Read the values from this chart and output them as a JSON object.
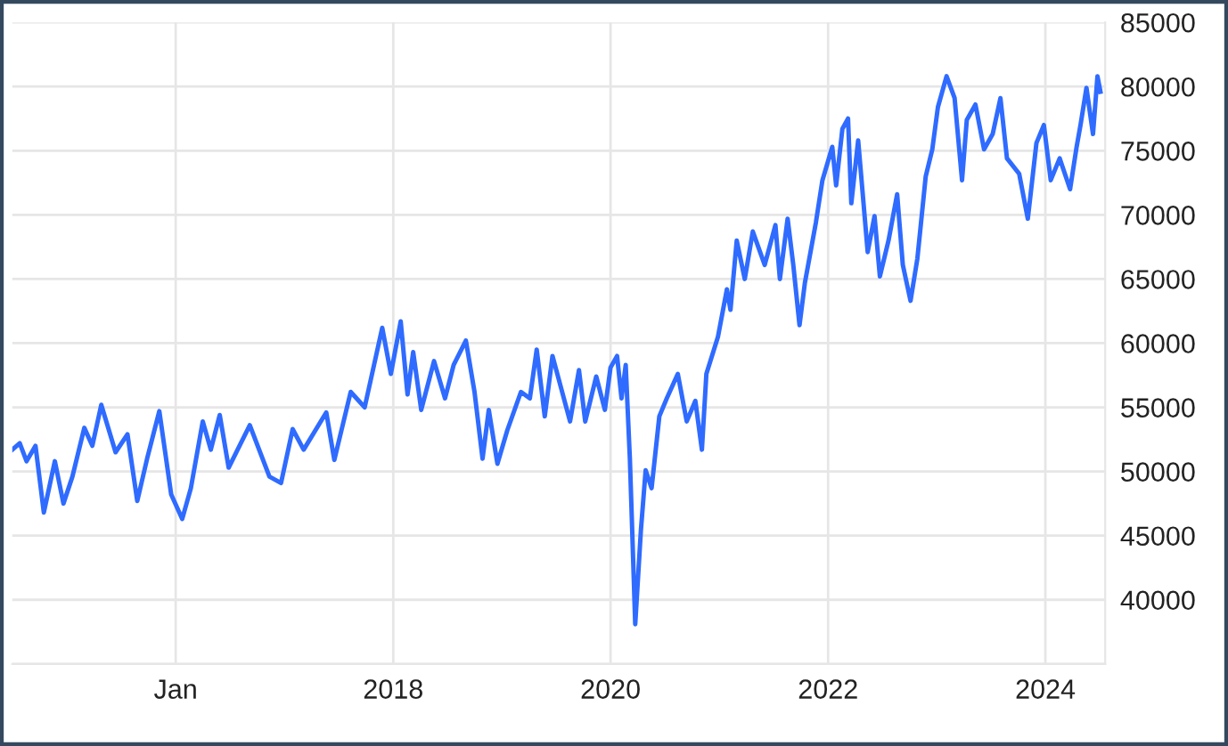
{
  "chart_data": {
    "type": "line",
    "x": [
      "2014-07-01",
      "2014-07-26",
      "2014-08-18",
      "2014-09-17",
      "2014-10-15",
      "2014-11-21",
      "2014-12-20",
      "2015-01-19",
      "2015-02-28",
      "2015-03-27",
      "2015-04-26",
      "2015-06-13",
      "2015-07-23",
      "2015-08-25",
      "2015-09-27",
      "2015-11-07",
      "2015-12-17",
      "2016-01-23",
      "2016-02-21",
      "2016-04-01",
      "2016-04-28",
      "2016-05-28",
      "2016-06-27",
      "2016-09-06",
      "2016-11-11",
      "2016-12-20",
      "2017-01-28",
      "2017-03-06",
      "2017-05-21",
      "2017-06-17",
      "2017-08-11",
      "2017-09-27",
      "2017-11-25",
      "2017-12-24",
      "2018-01-26",
      "2018-02-18",
      "2018-03-09",
      "2018-04-05",
      "2018-05-18",
      "2018-06-24",
      "2018-07-23",
      "2018-09-02",
      "2018-10-01",
      "2018-10-28",
      "2018-11-18",
      "2018-12-17",
      "2019-01-19",
      "2019-03-06",
      "2019-04-05",
      "2019-04-28",
      "2019-05-25",
      "2019-06-20",
      "2019-08-18",
      "2019-09-17",
      "2019-10-08",
      "2019-11-14",
      "2019-12-13",
      "2020-01-01",
      "2020-01-23",
      "2020-02-07",
      "2020-02-21",
      "2020-03-06",
      "2020-03-24",
      "2020-04-12",
      "2020-04-28",
      "2020-05-18",
      "2020-06-13",
      "2020-07-08",
      "2020-08-14",
      "2020-09-13",
      "2020-10-12",
      "2020-11-03",
      "2020-11-18",
      "2020-12-27",
      "2021-01-26",
      "2021-02-07",
      "2021-02-28",
      "2021-03-27",
      "2021-04-23",
      "2021-06-02",
      "2021-07-08",
      "2021-07-23",
      "2021-08-18",
      "2021-09-06",
      "2021-09-27",
      "2021-10-15",
      "2021-11-21",
      "2021-12-13",
      "2022-01-15",
      "2022-01-28",
      "2022-02-18",
      "2022-03-09",
      "2022-03-20",
      "2022-04-12",
      "2022-05-14",
      "2022-06-06",
      "2022-06-24",
      "2022-07-23",
      "2022-08-21",
      "2022-09-09",
      "2022-10-05",
      "2022-10-28",
      "2022-11-25",
      "2022-12-17",
      "2023-01-05",
      "2023-02-03",
      "2023-03-02",
      "2023-03-27",
      "2023-04-12",
      "2023-05-11",
      "2023-06-09",
      "2023-07-08",
      "2023-08-03",
      "2023-08-25",
      "2023-10-05",
      "2023-11-03",
      "2023-12-02",
      "2023-12-27",
      "2024-01-19",
      "2024-02-18",
      "2024-03-24",
      "2024-04-15",
      "2024-04-28",
      "2024-05-18",
      "2024-06-09",
      "2024-06-24",
      "2024-07-04"
    ],
    "series": [
      {
        "color": "#2f6bff",
        "values": [
          51700,
          52200,
          50800,
          52000,
          46800,
          50800,
          47500,
          49600,
          53400,
          52000,
          55200,
          51500,
          52900,
          47700,
          51000,
          54700,
          48200,
          46300,
          48700,
          53900,
          51700,
          54400,
          50300,
          53600,
          49600,
          49100,
          53300,
          51700,
          54600,
          50900,
          56200,
          55000,
          61200,
          57600,
          61700,
          56000,
          59300,
          54800,
          58600,
          55700,
          58300,
          60200,
          56200,
          51000,
          54800,
          50600,
          53200,
          56200,
          55700,
          59500,
          54300,
          59000,
          53900,
          57900,
          53900,
          57400,
          54800,
          58100,
          59000,
          55700,
          58300,
          51000,
          38100,
          45400,
          50100,
          48700,
          54300,
          55700,
          57600,
          53900,
          55500,
          51700,
          57600,
          60500,
          64200,
          62600,
          68000,
          65000,
          68700,
          66100,
          69200,
          65000,
          69700,
          66100,
          61400,
          64700,
          69400,
          72700,
          75300,
          72300,
          76700,
          77500,
          70900,
          75800,
          67100,
          69900,
          65200,
          68000,
          71600,
          66100,
          63300,
          66600,
          73000,
          75100,
          78400,
          80800,
          79100,
          72700,
          77400,
          78600,
          75100,
          76300,
          79100,
          74400,
          73200,
          69700,
          75600,
          77000,
          72700,
          74400,
          72000,
          75300,
          77000,
          79900,
          76300,
          80800,
          79600
        ]
      }
    ],
    "xlim": [
      "2014-07-01",
      "2024-07-20"
    ],
    "xticks": [
      {
        "value": "2016-01-01",
        "label": "Jan"
      },
      {
        "value": "2018-01-01",
        "label": "2018"
      },
      {
        "value": "2020-01-01",
        "label": "2020"
      },
      {
        "value": "2022-01-01",
        "label": "2022"
      },
      {
        "value": "2024-01-01",
        "label": "2024"
      }
    ],
    "ylim": [
      35000,
      85000
    ],
    "yticks": [
      {
        "value": 35000,
        "label": null
      },
      40000,
      45000,
      50000,
      55000,
      60000,
      65000,
      70000,
      75000,
      80000,
      85000
    ],
    "grid": true,
    "line_style": "solid"
  }
}
